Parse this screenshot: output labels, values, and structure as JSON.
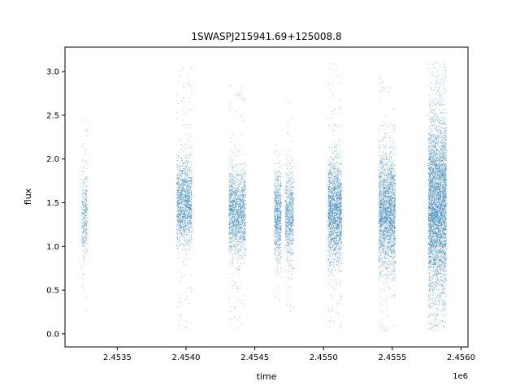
{
  "chart_data": {
    "type": "scatter",
    "title": "1SWASPJ215941.69+125008.8",
    "xlabel": "time",
    "ylabel": "flux",
    "x_offset_label": "1e6",
    "xlim": [
      2.45312,
      2.45605
    ],
    "ylim": [
      -0.15,
      3.28
    ],
    "x_ticks": [
      2.4535,
      2.454,
      2.4545,
      2.455,
      2.4555,
      2.456
    ],
    "x_tick_labels": [
      "2.4535",
      "2.4540",
      "2.4545",
      "2.4550",
      "2.4555",
      "2.4560"
    ],
    "y_ticks": [
      0.0,
      0.5,
      1.0,
      1.5,
      2.0,
      2.5,
      3.0
    ],
    "y_tick_labels": [
      "0.0",
      "0.5",
      "1.0",
      "1.5",
      "2.0",
      "2.5",
      "3.0"
    ],
    "grid": false,
    "legend": "none",
    "marker_color": "#1f77b4",
    "series": [
      {
        "observing_seasons": [
          {
            "x_range": [
              2.45324,
              2.45328
            ],
            "flux_center": 1.35,
            "flux_spread": 0.25,
            "flux_min": 0.1,
            "flux_max": 2.55,
            "density": 320
          },
          {
            "x_range": [
              2.45393,
              2.45404
            ],
            "flux_center": 1.5,
            "flux_spread": 0.24,
            "flux_min": 0.02,
            "flux_max": 3.05,
            "density": 1400
          },
          {
            "x_range": [
              2.45431,
              2.45443
            ],
            "flux_center": 1.4,
            "flux_spread": 0.24,
            "flux_min": 0.05,
            "flux_max": 2.85,
            "density": 1500
          },
          {
            "x_range": [
              2.45464,
              2.45469
            ],
            "flux_center": 1.35,
            "flux_spread": 0.24,
            "flux_min": 0.35,
            "flux_max": 2.25,
            "density": 700
          },
          {
            "x_range": [
              2.45472,
              2.45478
            ],
            "flux_center": 1.35,
            "flux_spread": 0.24,
            "flux_min": 0.2,
            "flux_max": 2.7,
            "density": 700
          },
          {
            "x_range": [
              2.45503,
              2.45513
            ],
            "flux_center": 1.4,
            "flux_spread": 0.28,
            "flux_min": 0.05,
            "flux_max": 3.1,
            "density": 1800
          },
          {
            "x_range": [
              2.4554,
              2.45552
            ],
            "flux_center": 1.4,
            "flux_spread": 0.32,
            "flux_min": 0.0,
            "flux_max": 3.0,
            "density": 2200
          },
          {
            "x_range": [
              2.45576,
              2.45589
            ],
            "flux_center": 1.45,
            "flux_spread": 0.5,
            "flux_min": 0.02,
            "flux_max": 3.12,
            "density": 4200
          }
        ]
      }
    ]
  }
}
